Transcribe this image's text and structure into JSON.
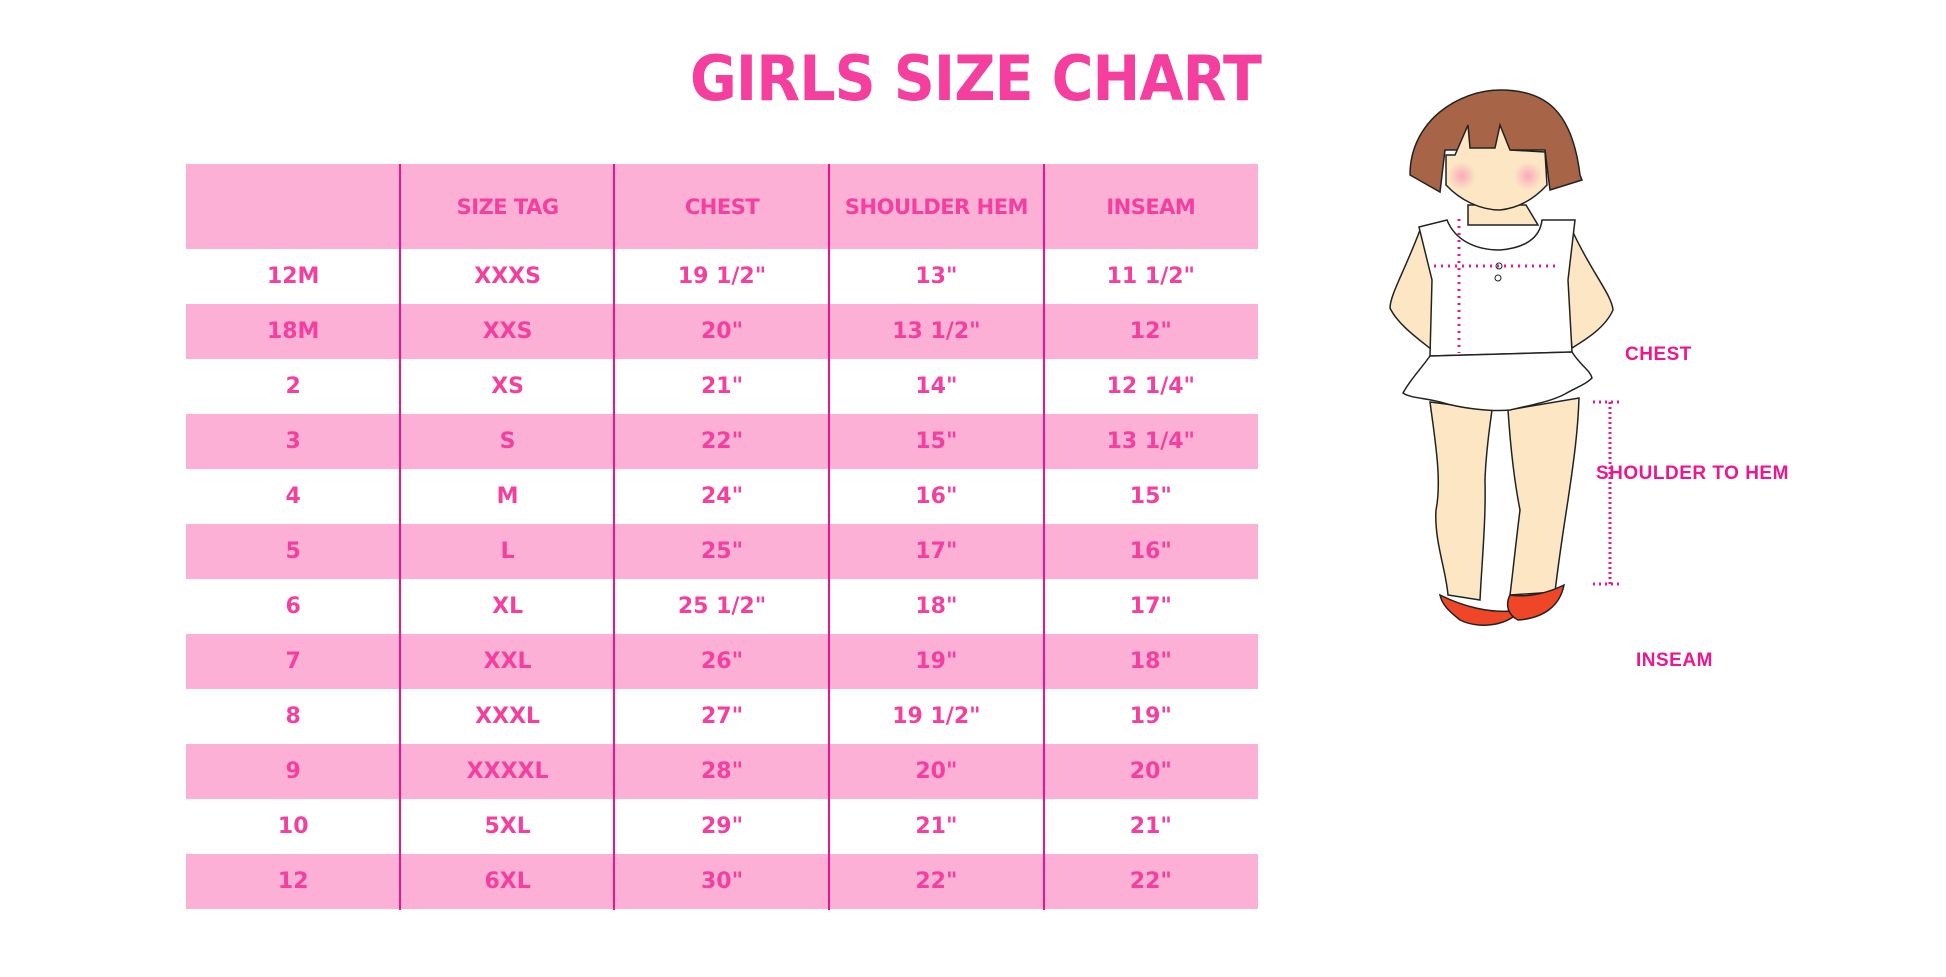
{
  "title": "GIRLS SIZE CHART",
  "colors": {
    "accent": "#f43f9f",
    "band": "#fdb0d5",
    "divider": "#e8158f",
    "hair": "#a86446",
    "skin": "#fde6c4",
    "shoes": "#f04628"
  },
  "table": {
    "headers": [
      "",
      "SIZE TAG",
      "CHEST",
      "SHOULDER HEM",
      "INSEAM"
    ],
    "rows": [
      [
        "12M",
        "XXXS",
        "19 1/2\"",
        "13\"",
        "11 1/2\""
      ],
      [
        "18M",
        "XXS",
        "20\"",
        "13 1/2\"",
        "12\""
      ],
      [
        "2",
        "XS",
        "21\"",
        "14\"",
        "12 1/4\""
      ],
      [
        "3",
        "S",
        "22\"",
        "15\"",
        "13 1/4\""
      ],
      [
        "4",
        "M",
        "24\"",
        "16\"",
        "15\""
      ],
      [
        "5",
        "L",
        "25\"",
        "17\"",
        "16\""
      ],
      [
        "6",
        "XL",
        "25 1/2\"",
        "18\"",
        "17\""
      ],
      [
        "7",
        "XXL",
        "26\"",
        "19\"",
        "18\""
      ],
      [
        "8",
        "XXXL",
        "27\"",
        "19 1/2\"",
        "19\""
      ],
      [
        "9",
        "XXXXL",
        "28\"",
        "20\"",
        "20\""
      ],
      [
        "10",
        "5XL",
        "29\"",
        "21\"",
        "21\""
      ],
      [
        "12",
        "6XL",
        "30\"",
        "22\"",
        "22\""
      ]
    ]
  },
  "figure": {
    "labels": {
      "chest": "CHEST",
      "shoulder_to_hem": "SHOULDER TO HEM",
      "inseam": "INSEAM"
    }
  }
}
